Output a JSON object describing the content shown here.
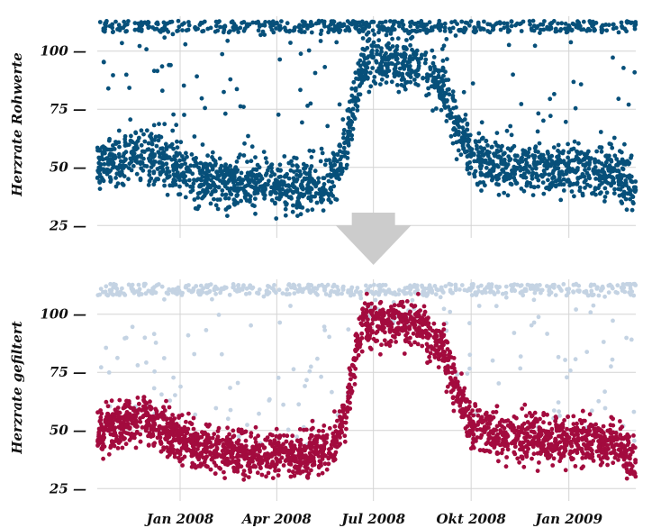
{
  "chart_data": [
    {
      "type": "scatter",
      "ylabel": "Herzrate Rohwerte",
      "xlabel": "",
      "yticks": [
        25,
        50,
        75,
        100
      ],
      "ylim": [
        22,
        115
      ],
      "xlim": [
        "2007-10-15",
        "2009-03-05"
      ],
      "x_ticks": [
        {
          "date": "2008-01-01",
          "label": "Jan 2008"
        },
        {
          "date": "2008-04-01",
          "label": "Apr 2008"
        },
        {
          "date": "2008-07-01",
          "label": "Jul 2008"
        },
        {
          "date": "2008-10-01",
          "label": "Okt 2008"
        },
        {
          "date": "2009-01-01",
          "label": "Jan 2009"
        }
      ],
      "grid": true,
      "series": [
        {
          "color": "#07507a",
          "role": "raw",
          "trend": [
            {
              "x": "2007-10-15",
              "y": 53
            },
            {
              "x": "2007-12-01",
              "y": 55
            },
            {
              "x": "2008-01-15",
              "y": 46
            },
            {
              "x": "2008-03-01",
              "y": 43
            },
            {
              "x": "2008-05-01",
              "y": 41
            },
            {
              "x": "2008-05-25",
              "y": 45
            },
            {
              "x": "2008-06-05",
              "y": 58
            },
            {
              "x": "2008-06-20",
              "y": 95
            },
            {
              "x": "2008-08-10",
              "y": 95
            },
            {
              "x": "2008-09-05",
              "y": 82
            },
            {
              "x": "2008-10-01",
              "y": 55
            },
            {
              "x": "2008-11-01",
              "y": 50
            },
            {
              "x": "2009-01-01",
              "y": 49
            },
            {
              "x": "2009-02-15",
              "y": 48
            },
            {
              "x": "2009-03-05",
              "y": 40
            }
          ],
          "spread": 8,
          "outlier_band": [
            108,
            113
          ]
        }
      ]
    },
    {
      "type": "scatter",
      "ylabel": "Herzrate gefiltert",
      "xlabel": "",
      "yticks": [
        25,
        50,
        75,
        100
      ],
      "ylim": [
        22,
        115
      ],
      "xlim": [
        "2007-10-15",
        "2009-03-05"
      ],
      "x_ticks": [
        {
          "date": "2008-01-01",
          "label": "Jan 2008"
        },
        {
          "date": "2008-04-01",
          "label": "Apr 2008"
        },
        {
          "date": "2008-07-01",
          "label": "Jul 2008"
        },
        {
          "date": "2008-10-01",
          "label": "Okt 2008"
        },
        {
          "date": "2009-01-01",
          "label": "Jan 2009"
        }
      ],
      "grid": true,
      "series": [
        {
          "color": "#c4d3e3",
          "role": "raw-background",
          "outlier_band": [
            108,
            113
          ]
        },
        {
          "color": "#a30b3e",
          "role": "filtered",
          "trend": [
            {
              "x": "2007-10-15",
              "y": 50
            },
            {
              "x": "2007-12-01",
              "y": 55
            },
            {
              "x": "2008-01-15",
              "y": 44
            },
            {
              "x": "2008-03-01",
              "y": 40
            },
            {
              "x": "2008-05-01",
              "y": 39
            },
            {
              "x": "2008-05-25",
              "y": 44
            },
            {
              "x": "2008-06-05",
              "y": 58
            },
            {
              "x": "2008-06-20",
              "y": 97
            },
            {
              "x": "2008-08-10",
              "y": 96
            },
            {
              "x": "2008-09-05",
              "y": 84
            },
            {
              "x": "2008-10-01",
              "y": 52
            },
            {
              "x": "2008-11-01",
              "y": 47
            },
            {
              "x": "2009-01-01",
              "y": 46
            },
            {
              "x": "2009-02-15",
              "y": 45
            },
            {
              "x": "2009-03-05",
              "y": 36
            }
          ],
          "spread": 8
        }
      ]
    }
  ],
  "arrow": {
    "color": "#cccccc",
    "direction": "down"
  }
}
